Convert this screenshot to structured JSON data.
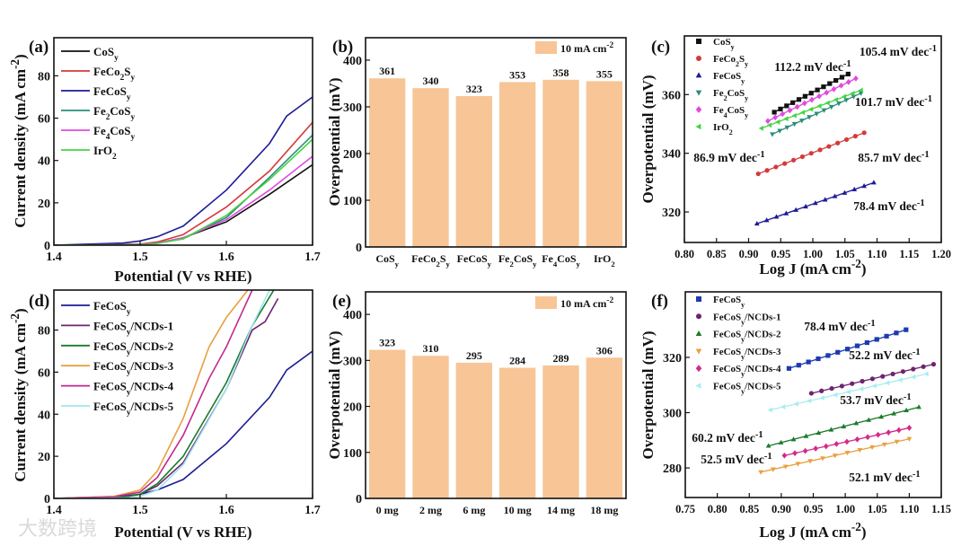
{
  "watermark": "大数跨境",
  "chart_data": [
    {
      "panel": "(a)",
      "type": "line",
      "xlabel": "Potential (V vs RHE)",
      "ylabel": "Current density (mA cm^{-2})",
      "xlim": [
        1.4,
        1.7
      ],
      "ylim": [
        0,
        98
      ],
      "xticks": [
        1.4,
        1.5,
        1.6,
        1.7
      ],
      "yticks": [
        0,
        20,
        40,
        60,
        80
      ],
      "legend": "top-left",
      "series": [
        {
          "name": "CoS_y",
          "color": "#111111",
          "x": [
            1.4,
            1.5,
            1.52,
            1.55,
            1.6,
            1.65,
            1.7
          ],
          "y": [
            0,
            0.3,
            1,
            3.5,
            11,
            24,
            38
          ]
        },
        {
          "name": "FeCo_2S_y",
          "color": "#d43a3a",
          "x": [
            1.4,
            1.5,
            1.52,
            1.55,
            1.6,
            1.65,
            1.7
          ],
          "y": [
            0,
            0.5,
            1.5,
            5,
            18,
            35,
            58
          ]
        },
        {
          "name": "FeCoS_y",
          "color": "#1c1c96",
          "x": [
            1.4,
            1.48,
            1.5,
            1.52,
            1.55,
            1.6,
            1.65,
            1.67,
            1.7
          ],
          "y": [
            0,
            1,
            2,
            4,
            9,
            26,
            48,
            61,
            70
          ]
        },
        {
          "name": "Fe_2CoS_y",
          "color": "#2a8c7c",
          "x": [
            1.4,
            1.5,
            1.52,
            1.55,
            1.6,
            1.65,
            1.7
          ],
          "y": [
            0,
            0.3,
            1,
            3,
            13,
            32,
            52
          ]
        },
        {
          "name": "Fe_4CoS_y",
          "color": "#e04ae0",
          "x": [
            1.4,
            1.5,
            1.52,
            1.55,
            1.6,
            1.65,
            1.7
          ],
          "y": [
            0,
            0.3,
            1,
            3.5,
            12,
            26,
            42
          ]
        },
        {
          "name": "IrO_2",
          "color": "#44d444",
          "x": [
            1.4,
            1.5,
            1.52,
            1.55,
            1.6,
            1.65,
            1.7
          ],
          "y": [
            0,
            0.2,
            0.8,
            3,
            14,
            31,
            50
          ]
        }
      ]
    },
    {
      "panel": "(b)",
      "type": "bar",
      "ylabel": "Overpotential (mV)",
      "ylim": [
        0,
        448
      ],
      "yticks": [
        0,
        100,
        200,
        300,
        400
      ],
      "legend_label": "10 mA cm^{-2}",
      "legend": "top-right",
      "color": "#f8c596",
      "categories": [
        "CoS_y",
        "FeCo_2S_y",
        "FeCoS_y",
        "Fe_2CoS_y",
        "Fe_4CoS_y",
        "IrO_2"
      ],
      "values": [
        361,
        340,
        323,
        353,
        358,
        355
      ]
    },
    {
      "panel": "(c)",
      "type": "scatter",
      "xlabel": "Log J (mA cm^{-2})",
      "ylabel": "Overpotential (mV)",
      "xlim": [
        0.8,
        1.2
      ],
      "ylim": [
        309.6,
        380
      ],
      "xticks": [
        0.8,
        0.85,
        0.9,
        0.95,
        1.0,
        1.05,
        1.1,
        1.15,
        1.2
      ],
      "yticks": [
        320,
        340,
        360
      ],
      "legend": "top-left",
      "series": [
        {
          "name": "CoS_y",
          "color": "#111111",
          "marker": "square",
          "x": [
            0.94,
            1.055
          ],
          "y": [
            354,
            367
          ],
          "slope_label": "112.2 mV dec^{-1}"
        },
        {
          "name": "FeCo_2S_y",
          "color": "#d43a3a",
          "marker": "circle",
          "x": [
            0.915,
            1.08
          ],
          "y": [
            333,
            347
          ],
          "slope_label": "85.7 mV dec^{-1}"
        },
        {
          "name": "FeCoS_y",
          "color": "#1c1c96",
          "marker": "triangle-up",
          "x": [
            0.913,
            1.095
          ],
          "y": [
            316,
            330
          ],
          "slope_label": "78.4 mV dec^{-1}"
        },
        {
          "name": "Fe_2CoS_y",
          "color": "#2a8c7c",
          "marker": "triangle-down",
          "x": [
            0.937,
            1.075
          ],
          "y": [
            346.5,
            360.5
          ],
          "slope_label": "101.7 mV dec^{-1}"
        },
        {
          "name": "Fe_4CoS_y",
          "color": "#e04ae0",
          "marker": "diamond",
          "x": [
            0.93,
            1.067
          ],
          "y": [
            351,
            365.5
          ],
          "slope_label": "105.4 mV dec^{-1}"
        },
        {
          "name": "IrO_2",
          "color": "#44d444",
          "marker": "triangle-left",
          "x": [
            0.92,
            1.075
          ],
          "y": [
            348.5,
            361.5
          ],
          "slope_label": "86.9 mV dec^{-1}"
        }
      ]
    },
    {
      "panel": "(d)",
      "type": "line",
      "xlabel": "Potential (V vs RHE)",
      "ylabel": "Current density (mA cm^{-2})",
      "xlim": [
        1.4,
        1.7
      ],
      "ylim": [
        0,
        99
      ],
      "xticks": [
        1.4,
        1.5,
        1.6,
        1.7
      ],
      "yticks": [
        0,
        20,
        40,
        60,
        80
      ],
      "legend": "top-left",
      "series": [
        {
          "name": "FeCoS_y",
          "color": "#1c1c96",
          "x": [
            1.4,
            1.48,
            1.5,
            1.52,
            1.55,
            1.6,
            1.65,
            1.67,
            1.7
          ],
          "y": [
            0,
            1,
            2,
            4,
            9,
            26,
            48,
            61,
            70
          ]
        },
        {
          "name": "FeCoS_y/NCDs-1",
          "color": "#6e2370",
          "x": [
            1.4,
            1.48,
            1.5,
            1.52,
            1.55,
            1.6,
            1.63,
            1.645,
            1.66
          ],
          "y": [
            0,
            0.5,
            2,
            6,
            17,
            52,
            80,
            84,
            95
          ]
        },
        {
          "name": "FeCoS_y/NCDs-2",
          "color": "#1c7a2c",
          "x": [
            1.4,
            1.48,
            1.5,
            1.52,
            1.55,
            1.6,
            1.63,
            1.655
          ],
          "y": [
            0,
            0.6,
            2,
            7,
            20,
            55,
            82,
            99
          ]
        },
        {
          "name": "FeCoS_y/NCDs-3",
          "color": "#e8a040",
          "x": [
            1.4,
            1.47,
            1.5,
            1.52,
            1.55,
            1.58,
            1.6,
            1.625
          ],
          "y": [
            0,
            1,
            4,
            13,
            38,
            72,
            86,
            99
          ]
        },
        {
          "name": "FeCoS_y/NCDs-4",
          "color": "#c2288c",
          "x": [
            1.4,
            1.47,
            1.5,
            1.52,
            1.55,
            1.58,
            1.6,
            1.62,
            1.63
          ],
          "y": [
            0,
            0.8,
            3,
            10,
            30,
            57,
            72,
            90,
            99
          ]
        },
        {
          "name": "FeCoS_y/NCDs-5",
          "color": "#9ee6ea",
          "x": [
            1.4,
            1.49,
            1.5,
            1.52,
            1.55,
            1.6,
            1.63,
            1.65
          ],
          "y": [
            0,
            0.3,
            1,
            4,
            16,
            52,
            82,
            99
          ]
        }
      ]
    },
    {
      "panel": "(e)",
      "type": "bar",
      "ylabel": "Overpotential (mV)",
      "ylim": [
        0,
        449
      ],
      "yticks": [
        0,
        100,
        200,
        300,
        400
      ],
      "legend_label": "10 mA cm^{-2}",
      "legend": "top-right",
      "color": "#f8c596",
      "categories": [
        "0 mg",
        "2 mg",
        "6 mg",
        "10 mg",
        "14 mg",
        "18 mg"
      ],
      "values": [
        323,
        310,
        295,
        284,
        289,
        306
      ]
    },
    {
      "panel": "(f)",
      "type": "scatter",
      "xlabel": "Log J (mA cm^{-2})",
      "ylabel": "Overpotential (mV)",
      "xlim": [
        0.75,
        1.15
      ],
      "ylim": [
        269.3,
        343.7
      ],
      "xticks": [
        0.75,
        0.8,
        0.85,
        0.9,
        0.95,
        1.0,
        1.05,
        1.1,
        1.15
      ],
      "yticks": [
        280,
        300,
        320
      ],
      "legend": "top-left",
      "series": [
        {
          "name": "FeCoS_y",
          "color": "#1c3ab0",
          "marker": "square",
          "x": [
            0.912,
            1.095
          ],
          "y": [
            316,
            330
          ],
          "slope_label": "78.4 mV dec^{-1}"
        },
        {
          "name": "FeCoS_y/NCDs-1",
          "color": "#6e2370",
          "marker": "circle",
          "x": [
            0.947,
            1.138
          ],
          "y": [
            307,
            317.5
          ],
          "slope_label": "52.2 mV dec^{-1}"
        },
        {
          "name": "FeCoS_y/NCDs-2",
          "color": "#1c7a2c",
          "marker": "triangle-up",
          "x": [
            0.88,
            1.115
          ],
          "y": [
            288,
            302
          ],
          "slope_label": "60.2 mV dec^{-1}"
        },
        {
          "name": "FeCoS_y/NCDs-3",
          "color": "#e8a040",
          "marker": "triangle-down",
          "x": [
            0.868,
            1.1
          ],
          "y": [
            278.5,
            290.5
          ],
          "slope_label": "52.1 mV dec^{-1}"
        },
        {
          "name": "FeCoS_y/NCDs-4",
          "color": "#d42a8a",
          "marker": "diamond",
          "x": [
            0.905,
            1.1
          ],
          "y": [
            284.5,
            294.5
          ],
          "slope_label": "52.5 mV dec^{-1}"
        },
        {
          "name": "FeCoS_y/NCDs-5",
          "color": "#a6eef0",
          "marker": "triangle-left",
          "x": [
            0.883,
            1.127
          ],
          "y": [
            301,
            314
          ],
          "slope_label": "53.7 mV dec^{-1}"
        }
      ]
    }
  ]
}
